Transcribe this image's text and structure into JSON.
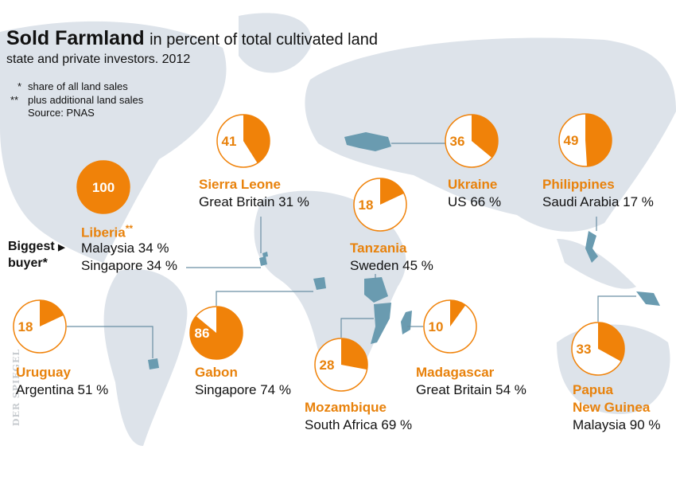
{
  "title": "Sold Farmland",
  "title_suffix": "in percent of total cultivated land",
  "subtitle": "state and private investors. 2012",
  "notes": {
    "n1_mark": "*",
    "n1": "share of all land sales",
    "n2_mark": "**",
    "n2": "plus additional land sales",
    "source": "Source: PNAS"
  },
  "biggest_buyer": {
    "label": "Biggest",
    "label2": "buyer*"
  },
  "watermark": "DER SPIEGEL",
  "colors": {
    "slice": "#f08209",
    "pie_bg": "#ffffff",
    "land": "#dde3ea",
    "highlight": "#6a9bb0",
    "text_accent": "#e8820c"
  },
  "chart_data": {
    "type": "pie",
    "title": "Sold Farmland",
    "items": [
      {
        "country": "Liberia**",
        "value": 100,
        "buyers": [
          "Malaysia 34 %",
          "Singapore 34 %"
        ]
      },
      {
        "country": "Sierra Leone",
        "value": 41,
        "buyers": [
          "Great Britain 31 %"
        ]
      },
      {
        "country": "Tanzania",
        "value": 18,
        "buyers": [
          "Sweden 45 %"
        ]
      },
      {
        "country": "Ukraine",
        "value": 36,
        "buyers": [
          "US 66 %"
        ]
      },
      {
        "country": "Philippines",
        "value": 49,
        "buyers": [
          "Saudi Arabia 17 %"
        ]
      },
      {
        "country": "Uruguay",
        "value": 18,
        "buyers": [
          "Argentina 51 %"
        ]
      },
      {
        "country": "Gabon",
        "value": 86,
        "buyers": [
          "Singapore 74 %"
        ]
      },
      {
        "country": "Mozambique",
        "value": 28,
        "buyers": [
          "South Africa 69 %"
        ]
      },
      {
        "country": "Madagascar",
        "value": 10,
        "buyers": [
          "Great Britain 54 %"
        ]
      },
      {
        "country": "Papua New Guinea",
        "country_lines": [
          "Papua",
          "New Guinea"
        ],
        "value": 33,
        "buyers": [
          "Malaysia 90 %"
        ]
      }
    ]
  }
}
